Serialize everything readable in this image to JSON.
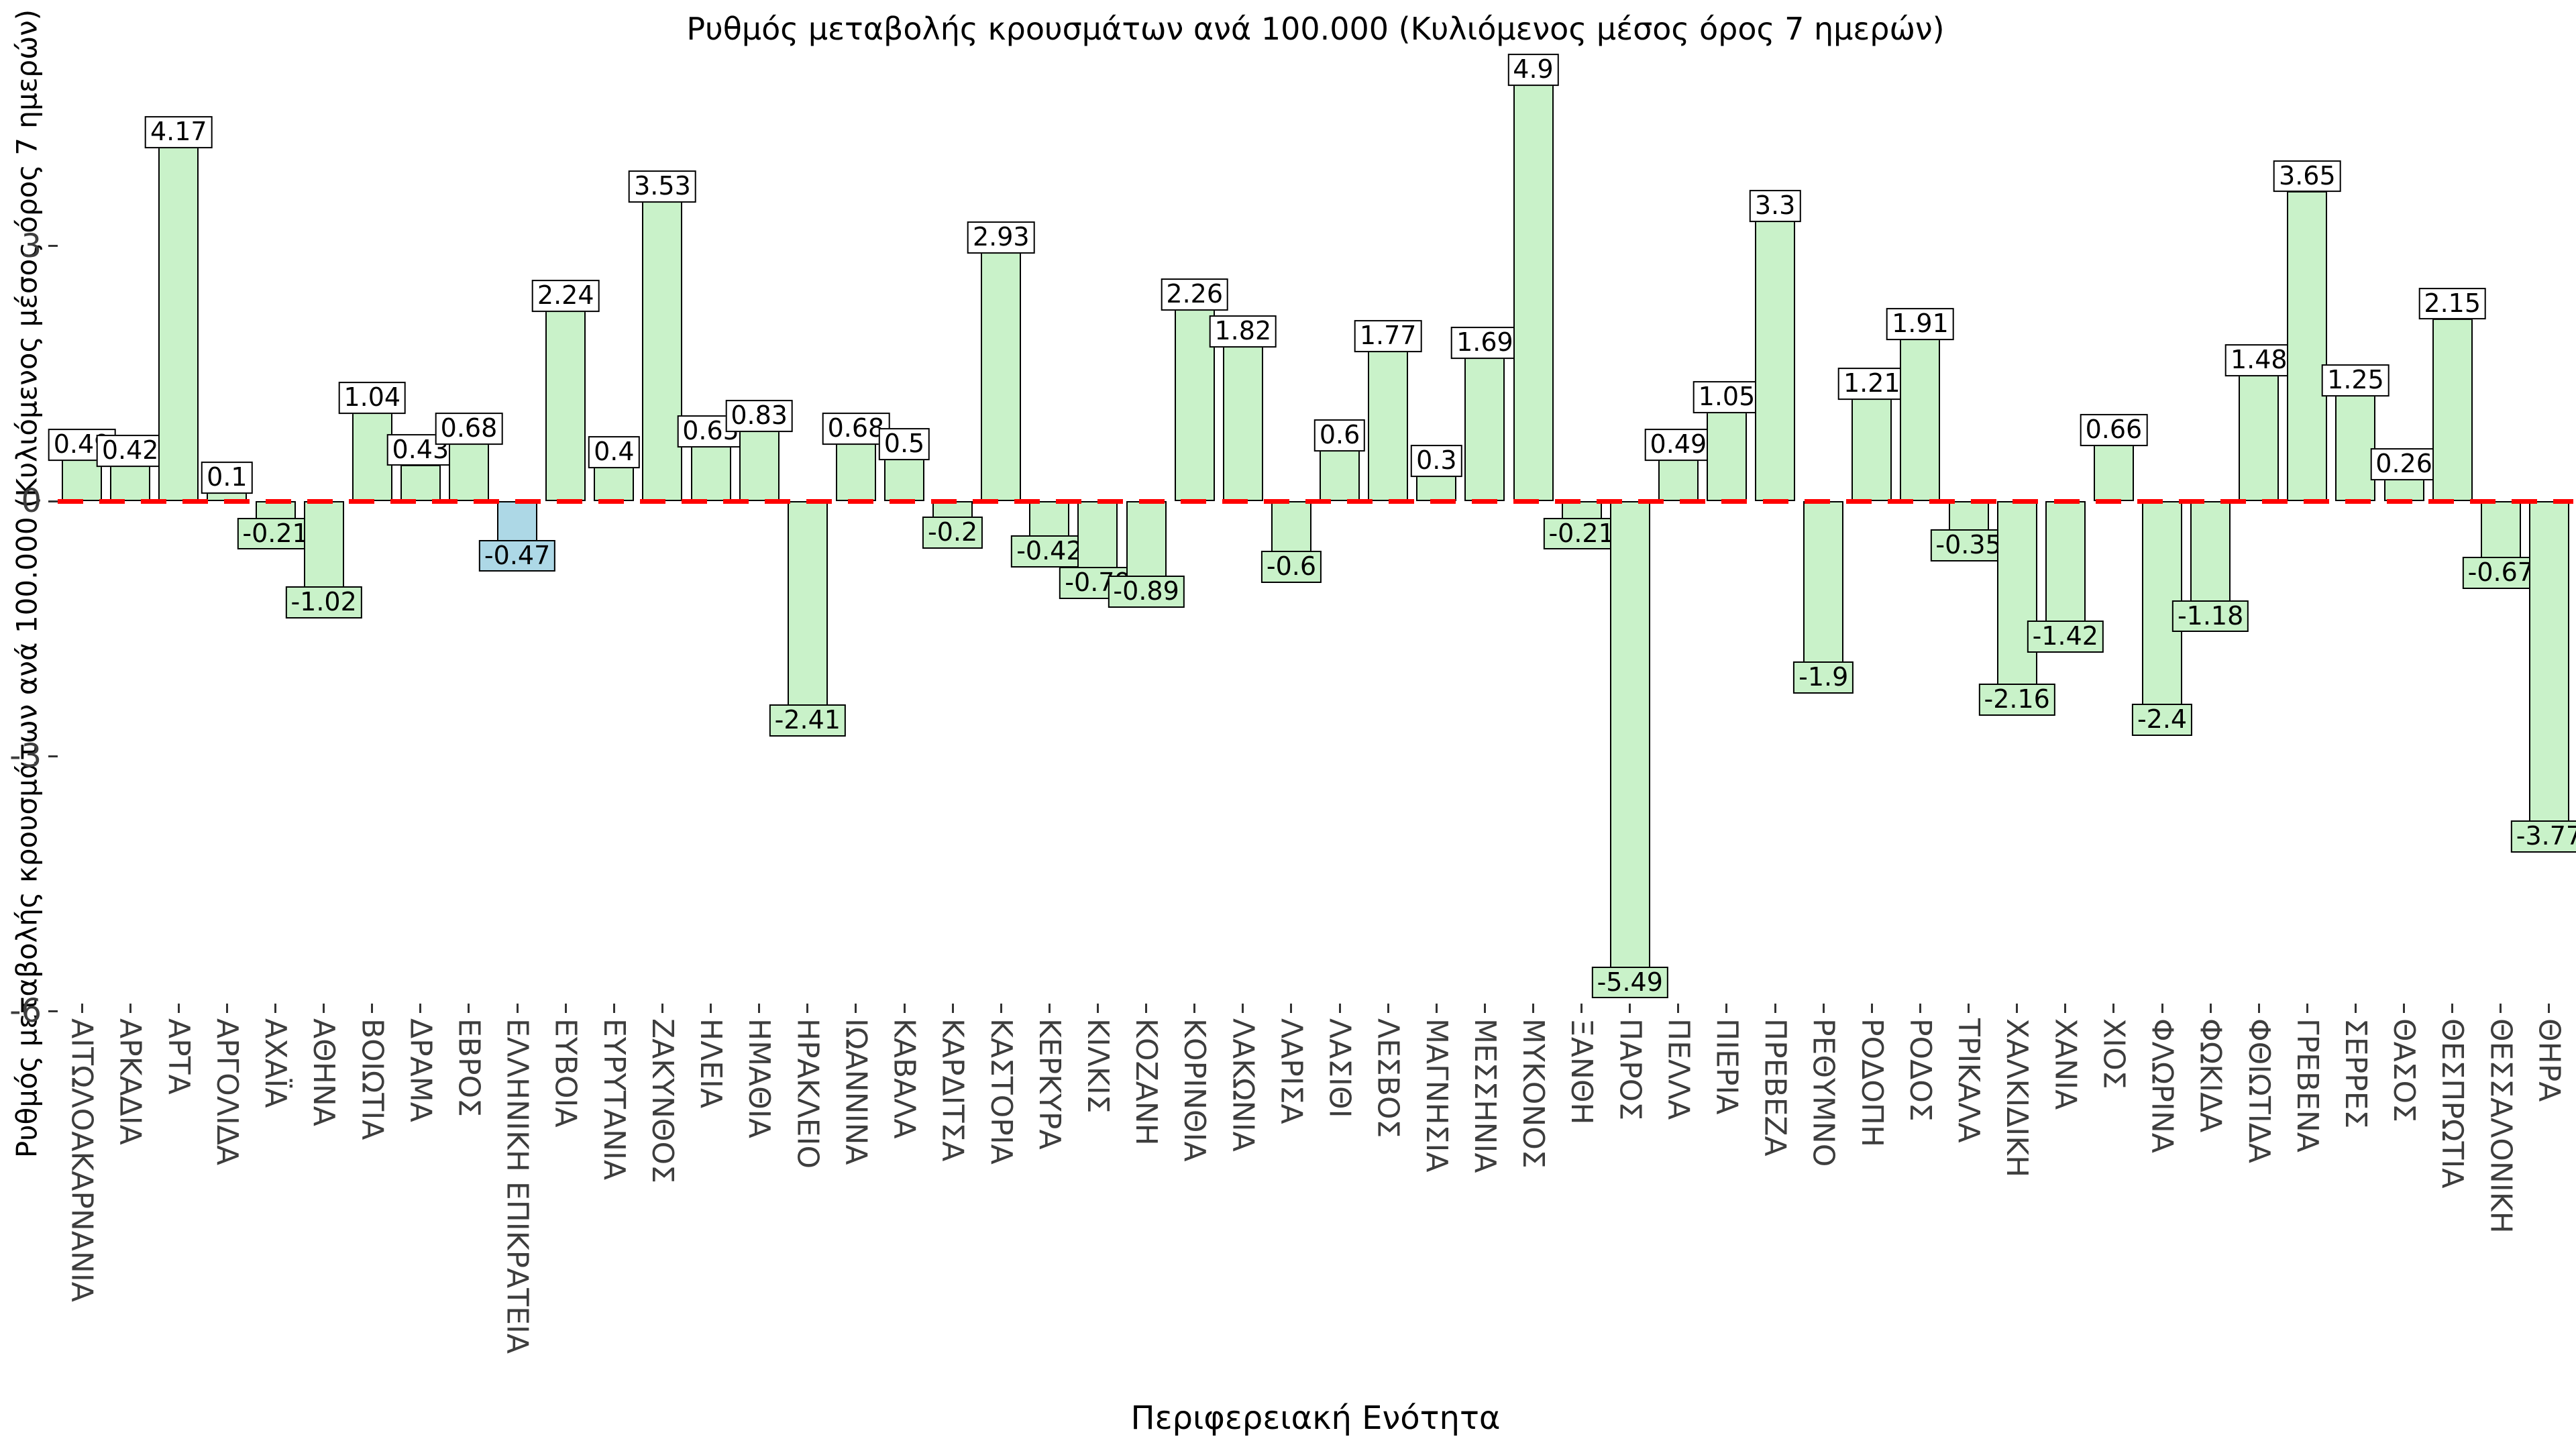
{
  "colors": {
    "bar_default": "#c9f2c9",
    "bar_highlight": "#add8e6",
    "bar_edge": "#000000",
    "zero_line": "#ff0000",
    "tick_label": "#3d3d3d",
    "value_label_bg_positive": "#ffffff"
  },
  "chart_data": {
    "type": "bar",
    "title": "Ρυθμός μεταβολής κρουσμάτων ανά 100.000 (Κυλιόμενος μέσος όρος 7 ημερών)",
    "xlabel": "Περιφερειακή Ενότητα",
    "ylabel": "Ρυθμός μεταβολής κρουσμάτων ανά 100.000 (Κυλιόμενος μέσος όρος 7 ημερών)",
    "ylim": [
      -6.6,
      5.3
    ],
    "yticks": [
      3,
      0,
      -3,
      -6
    ],
    "grid": false,
    "legend": false,
    "zero_line": {
      "value": 0,
      "style": "dashed",
      "color": "#ff0000"
    },
    "highlighted_category": "ΕΛΛΗΝΙΚΗ ΕΠΙΚΡΑΤΕΙΑ",
    "categories": [
      "ΑΙΤΩΛΟΑΚΑΡΝΑΝΙΑ",
      "ΑΡΚΑΔΙΑ",
      "ΑΡΤΑ",
      "ΑΡΓΟΛΙΔΑ",
      "ΑΧΑΪΑ",
      "ΑΘΗΝΑ",
      "ΒΟΙΩΤΙΑ",
      "ΔΡΑΜΑ",
      "ΕΒΡΟΣ",
      "ΕΛΛΗΝΙΚΗ ΕΠΙΚΡΑΤΕΙΑ",
      "ΕΥΒΟΙΑ",
      "ΕΥΡΥΤΑΝΙΑ",
      "ΖΑΚΥΝΘΟΣ",
      "ΗΛΕΙΑ",
      "ΗΜΑΘΙΑ",
      "ΗΡΑΚΛΕΙΟ",
      "ΙΩΑΝΝΙΝΑ",
      "ΚΑΒΑΛΑ",
      "ΚΑΡΔΙΤΣΑ",
      "ΚΑΣΤΟΡΙΑ",
      "ΚΕΡΚΥΡΑ",
      "ΚΙΛΚΙΣ",
      "ΚΟΖΑΝΗ",
      "ΚΟΡΙΝΘΙΑ",
      "ΛΑΚΩΝΙΑ",
      "ΛΑΡΙΣΑ",
      "ΛΑΣΙΘΙ",
      "ΛΕΣΒΟΣ",
      "ΜΑΓΝΗΣΙΑ",
      "ΜΕΣΣΗΝΙΑ",
      "ΜΥΚΟΝΟΣ",
      "ΞΑΝΘΗ",
      "ΠΑΡΟΣ",
      "ΠΕΛΛΑ",
      "ΠΙΕΡΙΑ",
      "ΠΡΕΒΕΖΑ",
      "ΡΕΘΥΜΝΟ",
      "ΡΟΔΟΠΗ",
      "ΡΟΔΟΣ",
      "ΤΡΙΚΑΛΑ",
      "ΧΑΛΚΙΔΙΚΗ",
      "ΧΑΝΙΑ",
      "ΧΙΟΣ",
      "ΦΛΩΡΙΝΑ",
      "ΦΩΚΙΔΑ",
      "ΦΘΙΩΤΙΔΑ",
      "ΓΡΕΒΕΝΑ",
      "ΣΕΡΡΕΣ",
      "ΘΑΣΟΣ",
      "ΘΕΣΠΡΩΤΙΑ",
      "ΘΕΣΣΑΛΟΝΙΚΗ",
      "ΘΗΡΑ"
    ],
    "values": [
      0.49,
      0.42,
      4.17,
      0.1,
      -0.21,
      -1.02,
      1.04,
      0.43,
      0.68,
      -0.47,
      2.24,
      0.4,
      3.53,
      0.65,
      0.83,
      -2.41,
      0.68,
      0.5,
      -0.2,
      2.93,
      -0.42,
      -0.79,
      -0.89,
      2.26,
      1.82,
      -0.6,
      0.6,
      1.77,
      0.3,
      1.69,
      4.9,
      -0.21,
      -5.49,
      0.49,
      1.05,
      3.3,
      -1.9,
      1.21,
      1.91,
      -0.35,
      -2.16,
      -1.42,
      0.66,
      -2.4,
      -1.18,
      1.48,
      3.65,
      1.25,
      0.26,
      2.15,
      -0.67,
      -3.77
    ]
  }
}
